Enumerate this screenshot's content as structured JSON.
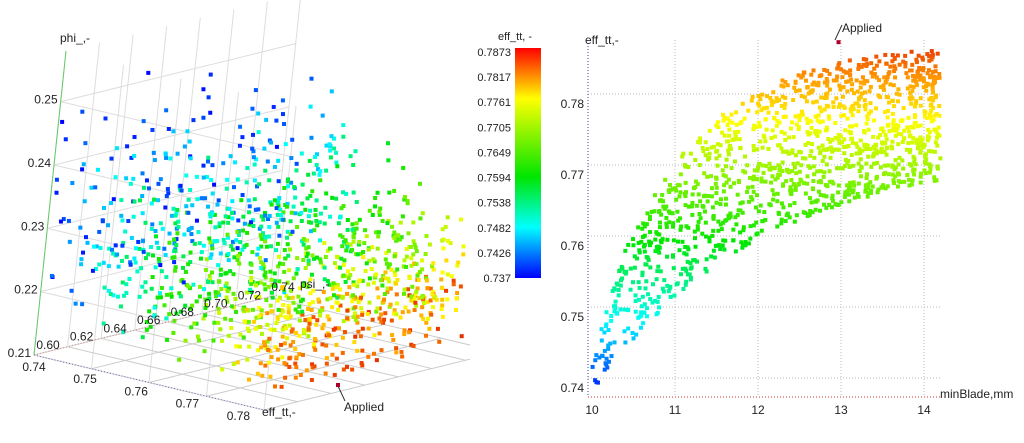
{
  "colorbar": {
    "title": "eff_tt, -",
    "ticks": [
      "0.7873",
      "0.7817",
      "0.7761",
      "0.7705",
      "0.7649",
      "0.7594",
      "0.7538",
      "0.7482",
      "0.7426",
      "0.737"
    ],
    "range": [
      0.737,
      0.7873
    ],
    "colormap": "jet",
    "stops": [
      "#0000ff",
      "#00ffff",
      "#00e600",
      "#ffff00",
      "#ff0000"
    ]
  },
  "chart_data": [
    {
      "type": "scatter",
      "projection": "3d",
      "x_label": "psi_,-",
      "y_label": "eff_tt,-",
      "z_label": "phi_,-",
      "x_ticks": [
        "0.60",
        "0.62",
        "0.64",
        "0.66",
        "0.68",
        "0.70",
        "0.72",
        "0.74"
      ],
      "y_ticks": [
        "0.74",
        "0.75",
        "0.76",
        "0.77",
        "0.78"
      ],
      "z_ticks": [
        "0.21",
        "0.22",
        "0.23",
        "0.24",
        "0.25"
      ],
      "x_range": [
        0.6,
        0.74
      ],
      "y_range": [
        0.74,
        0.785
      ],
      "z_range": [
        0.21,
        0.258
      ],
      "color_by": "eff_tt,-",
      "annotation": {
        "label": "Applied",
        "psi": 0.735,
        "eff": 0.783,
        "phi": 0.21
      },
      "grid": true
    },
    {
      "type": "scatter",
      "x_label": "minBlade,mm",
      "y_label": "eff_tt,-",
      "x_ticks": [
        "10",
        "11",
        "12",
        "13",
        "14"
      ],
      "y_ticks": [
        "0.74",
        "0.75",
        "0.76",
        "0.77",
        "0.78"
      ],
      "x_range": [
        10,
        14.2
      ],
      "y_range": [
        0.7383,
        0.7873
      ],
      "color_by": "eff_tt,-",
      "annotation": {
        "label": "Applied",
        "x": 12.97,
        "y": 0.7873
      },
      "grid": true
    }
  ]
}
